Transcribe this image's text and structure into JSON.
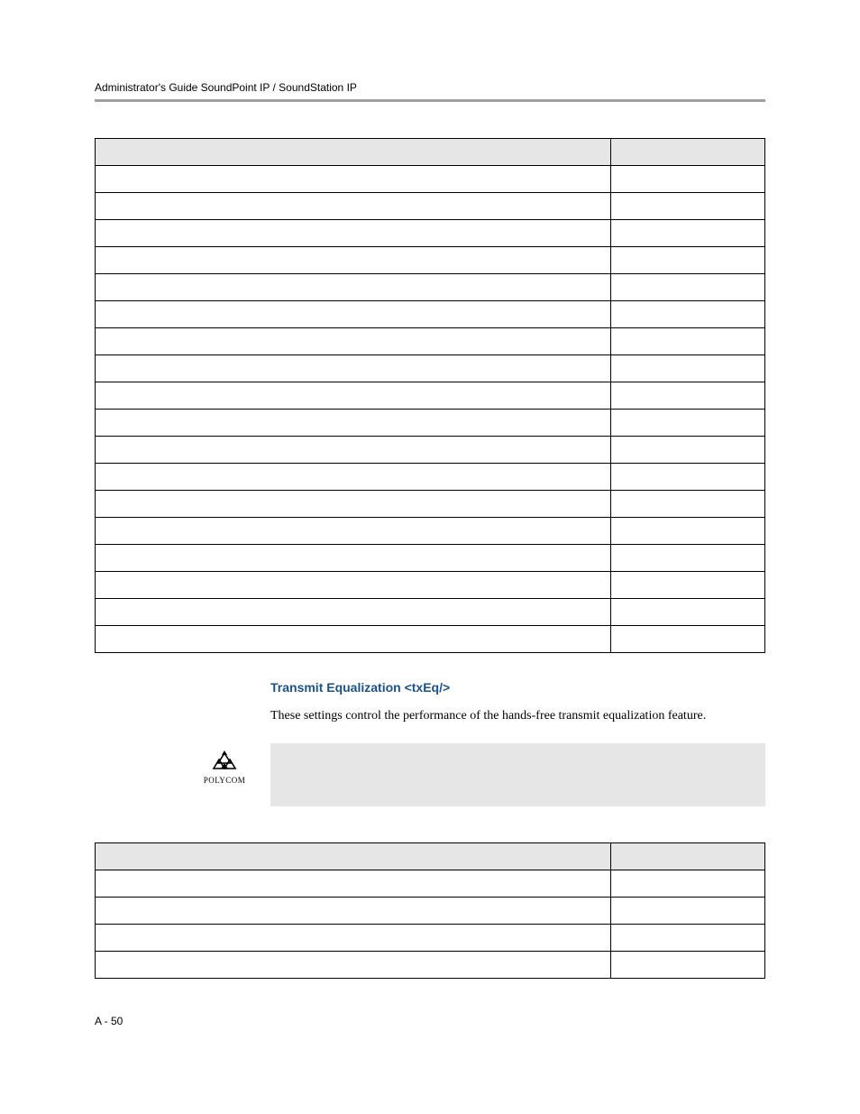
{
  "header": {
    "running_title": "Administrator's Guide SoundPoint IP / SoundStation IP"
  },
  "table1": {
    "header_cells": [
      "",
      ""
    ],
    "num_body_rows": 18,
    "col_widths": [
      "77%",
      "23%"
    ],
    "header_bg": "#e6e6e6",
    "border_color": "#000000"
  },
  "section": {
    "heading": "Transmit Equalization <txEq/>",
    "heading_color": "#1a5289",
    "body": "These settings control the performance of the hands-free transmit equalization feature."
  },
  "note": {
    "logo_label": "POLYCOM",
    "logo_symbol_color": "#000000",
    "content": ""
  },
  "table2": {
    "header_cells": [
      "",
      ""
    ],
    "num_body_rows": 4,
    "col_widths": [
      "77%",
      "23%"
    ],
    "header_bg": "#e6e6e6",
    "border_color": "#000000"
  },
  "footer": {
    "page_number": "A - 50"
  }
}
